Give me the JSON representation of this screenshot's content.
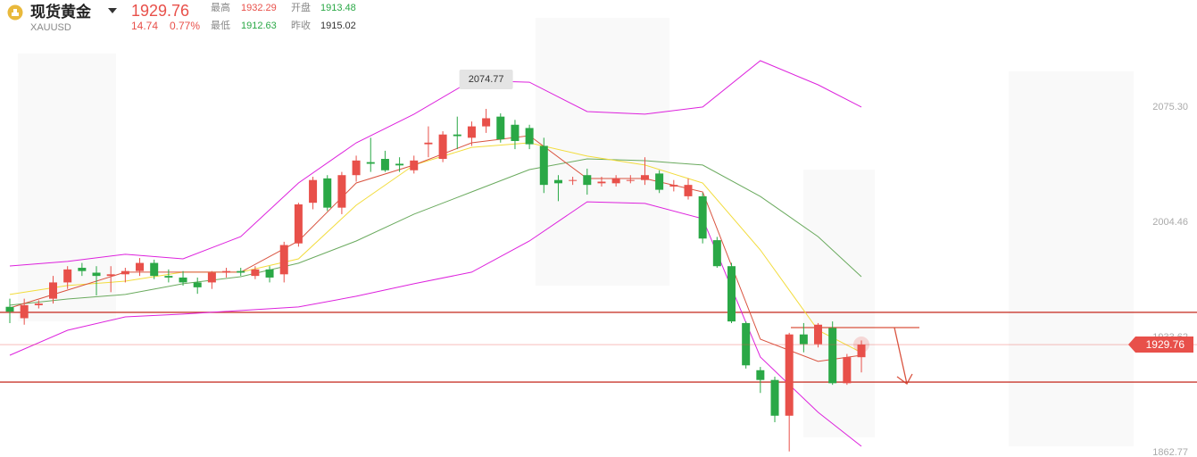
{
  "quote": {
    "name": "现货黄金",
    "symbol": "XAUUSD",
    "price": "1929.76",
    "change": "14.74",
    "change_pct": "0.77%",
    "stats": [
      {
        "label": "最高",
        "value": "1932.29"
      },
      {
        "label": "开盘",
        "value": "1913.48"
      },
      {
        "label": "最低",
        "value": "1912.63"
      },
      {
        "label": "昨收",
        "value": "1915.02"
      }
    ]
  },
  "chart_data": {
    "type": "candlestick",
    "up_color": "#e8504a",
    "down_color": "#2aa846",
    "ylim": [
      1860.6,
      2141.75
    ],
    "yticks": [
      {
        "value": 2075.3,
        "label": "2075.30"
      },
      2004.46,
      1933.62,
      1862.77
    ],
    "ohlc": [
      [
        1953,
        1958,
        1943,
        1950
      ],
      [
        1946,
        1958,
        1942,
        1954
      ],
      [
        1954,
        1957,
        1952,
        1955
      ],
      [
        1958,
        1972,
        1955,
        1968
      ],
      [
        1968,
        1978,
        1964,
        1976
      ],
      [
        1977,
        1980,
        1972,
        1975
      ],
      [
        1974,
        1978,
        1960,
        1972
      ],
      [
        1972,
        1978,
        1962,
        1973
      ],
      [
        1973,
        1977,
        1968,
        1975
      ],
      [
        1975,
        1983,
        1972,
        1980
      ],
      [
        1980,
        1982,
        1970,
        1972
      ],
      [
        1972,
        1976,
        1968,
        1971
      ],
      [
        1971,
        1975,
        1966,
        1968
      ],
      [
        1968,
        1971,
        1961,
        1965
      ],
      [
        1968,
        1975,
        1964,
        1974
      ],
      [
        1974,
        1977,
        1971,
        1975
      ],
      [
        1975,
        1977,
        1972,
        1974
      ],
      [
        1972,
        1978,
        1970,
        1976
      ],
      [
        1976,
        1978,
        1968,
        1971
      ],
      [
        1973,
        1993,
        1968,
        1991
      ],
      [
        1992,
        2017,
        1990,
        2016
      ],
      [
        2017,
        2033,
        2013,
        2031
      ],
      [
        2032,
        2034,
        2012,
        2014
      ],
      [
        2014,
        2036,
        2010,
        2034
      ],
      [
        2034,
        2046,
        2030,
        2043
      ],
      [
        2042,
        2057,
        2036,
        2041
      ],
      [
        2044,
        2049,
        2036,
        2037
      ],
      [
        2041,
        2045,
        2036,
        2040
      ],
      [
        2037,
        2046,
        2035,
        2043
      ],
      [
        2053,
        2064,
        2045,
        2054
      ],
      [
        2044,
        2061,
        2042,
        2059
      ],
      [
        2059,
        2070,
        2050,
        2058
      ],
      [
        2057,
        2067,
        2052,
        2064
      ],
      [
        2064,
        2074.77,
        2060,
        2069
      ],
      [
        2070,
        2072,
        2054,
        2056
      ],
      [
        2065,
        2068,
        2050,
        2055
      ],
      [
        2063,
        2065,
        2050,
        2053
      ],
      [
        2052,
        2057,
        2023,
        2028
      ],
      [
        2031,
        2034,
        2018,
        2029
      ],
      [
        2031,
        2033,
        2028,
        2031
      ],
      [
        2034,
        2038,
        2022,
        2028
      ],
      [
        2029,
        2033,
        2027,
        2030
      ],
      [
        2029,
        2034,
        2027,
        2032
      ],
      [
        2031,
        2034,
        2029,
        2031
      ],
      [
        2031,
        2045,
        2028,
        2034
      ],
      [
        2035,
        2037,
        2023,
        2025
      ],
      [
        2027,
        2031,
        2024,
        2028
      ],
      [
        2021,
        2032,
        2019,
        2028
      ],
      [
        2021,
        2023,
        1992,
        1995
      ],
      [
        1994,
        1996,
        1977,
        1978
      ],
      [
        1978,
        1980,
        1943,
        1944
      ],
      [
        1943,
        1944,
        1915,
        1917
      ],
      [
        1914,
        1916,
        1900,
        1908
      ],
      [
        1908,
        1910,
        1882,
        1886
      ],
      [
        1886,
        1937,
        1864,
        1936
      ],
      [
        1936,
        1943,
        1925,
        1930
      ],
      [
        1930,
        1943,
        1928,
        1942
      ],
      [
        1940,
        1944,
        1905,
        1906
      ],
      [
        1906,
        1924,
        1905,
        1922
      ],
      [
        1922,
        1932.29,
        1912.63,
        1929.76
      ]
    ],
    "high_label_index": 33,
    "overlays": [
      {
        "color": "#dd22dd",
        "x": [
          0,
          4,
          8,
          12,
          16,
          20,
          24,
          28,
          32,
          36,
          40,
          44,
          48,
          52,
          56,
          59
        ],
        "values": [
          1978.1,
          1980.9,
          1985.3,
          1982.5,
          1996.2,
          2029.2,
          2053.9,
          2071.5,
          2092.3,
          2091.2,
          2073.1,
          2071.5,
          2075.9,
          2104.4,
          2089.6,
          2075.9
        ]
      },
      {
        "color": "#dd22dd",
        "x": [
          0,
          4,
          8,
          12,
          16,
          20,
          24,
          28,
          32,
          36,
          40,
          44,
          48,
          52,
          56,
          59
        ],
        "values": [
          1923.2,
          1938.6,
          1946.8,
          1948.5,
          1950.7,
          1952.9,
          1959.5,
          1967.2,
          1974.3,
          1993.5,
          2017.6,
          2016.6,
          2007.2,
          1922.1,
          1888.1,
          1867.2
        ]
      },
      {
        "color": "#6aaa5e",
        "x": [
          0,
          4,
          8,
          12,
          16,
          20,
          24,
          28,
          32,
          36,
          40,
          44,
          48,
          52,
          56,
          59
        ],
        "values": [
          1954,
          1957.8,
          1960.6,
          1967.2,
          1971.5,
          1979.8,
          1993.5,
          2010,
          2023.7,
          2037.4,
          2044,
          2042.9,
          2040.2,
          2020.9,
          1996.2,
          1971.5
        ]
      },
      {
        "color": "#f2dc3c",
        "x": [
          0,
          4,
          8,
          12,
          16,
          20,
          24,
          28,
          32,
          36,
          40,
          44,
          48,
          52,
          56,
          59
        ],
        "values": [
          1960.6,
          1966.1,
          1968.8,
          1974.3,
          1974.3,
          1982.5,
          2015.5,
          2040.2,
          2051.1,
          2053.9,
          2045.7,
          2040.2,
          2029.2,
          1988,
          1938.6,
          1924.9
        ]
      },
      {
        "color": "#d9533f",
        "x": [
          0,
          4,
          8,
          12,
          16,
          20,
          24,
          28,
          32,
          36,
          40,
          44,
          48,
          52,
          56,
          59
        ],
        "values": [
          1952.3,
          1963.3,
          1974.3,
          1974.3,
          1974.3,
          1993.5,
          2029.2,
          2040.2,
          2053.9,
          2058.3,
          2031.9,
          2031.9,
          2023.7,
          1933.1,
          1919.4,
          1923.2
        ]
      }
    ],
    "levels": [
      {
        "value": 1949.6,
        "color": "#c9392e"
      },
      {
        "value": 1906.7,
        "color": "#c9392e"
      }
    ],
    "last_color": "#e8504a"
  }
}
